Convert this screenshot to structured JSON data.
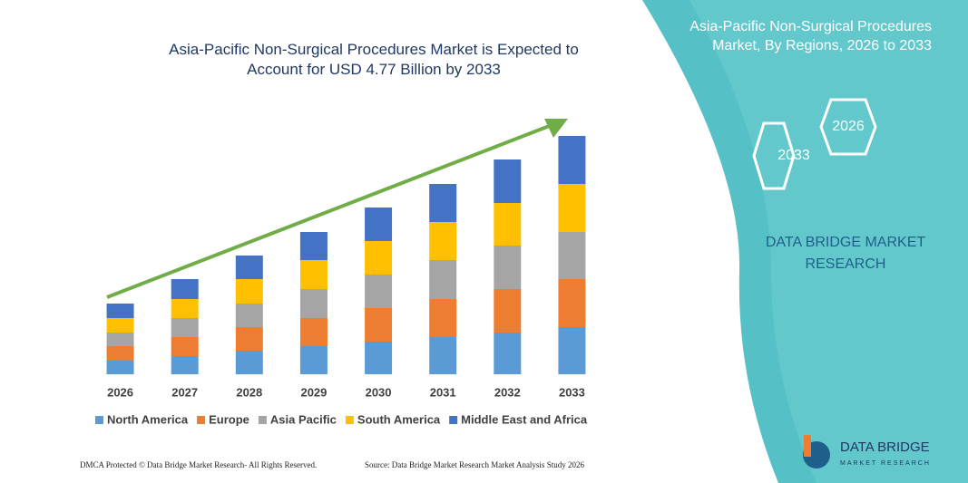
{
  "chart_data": {
    "type": "bar",
    "stacked": true,
    "title": "Asia-Pacific Non-Surgical Procedures Market is Expected to Account for USD 4.77 Billion by 2033",
    "categories": [
      "2026",
      "2027",
      "2028",
      "2029",
      "2030",
      "2031",
      "2032",
      "2033"
    ],
    "series": [
      {
        "name": "North America",
        "color": "#5b9bd5",
        "values": [
          15,
          20,
          26,
          31,
          36,
          41,
          46,
          52
        ]
      },
      {
        "name": "Europe",
        "color": "#ed7d31",
        "values": [
          16,
          21,
          26,
          31,
          37,
          42,
          48,
          53
        ]
      },
      {
        "name": "Asia Pacific",
        "color": "#a5a5a5",
        "values": [
          15,
          21,
          26,
          32,
          37,
          43,
          48,
          52
        ]
      },
      {
        "name": "South America",
        "color": "#ffc000",
        "values": [
          16,
          21,
          27,
          32,
          37,
          42,
          47,
          53
        ]
      },
      {
        "name": "Middle East and Africa",
        "color": "#4472c4",
        "values": [
          16,
          22,
          26,
          31,
          37,
          42,
          48,
          53
        ]
      }
    ],
    "ylim": [
      0,
      263
    ]
  },
  "panel": {
    "title": "Asia-Pacific Non-Surgical Procedures Market, By Regions, 2026 to 2033",
    "hex_start": "2026",
    "hex_end": "2033",
    "brand": "DATA BRIDGE MARKET RESEARCH"
  },
  "logo": {
    "name": "DATA BRIDGE",
    "sub": "MARKET RESEARCH"
  },
  "footer": {
    "left": "DMCA Protected © Data Bridge Market Research- All Rights Reserved.",
    "right": "Source: Data Bridge Market Research Market Analysis Study 2026"
  }
}
